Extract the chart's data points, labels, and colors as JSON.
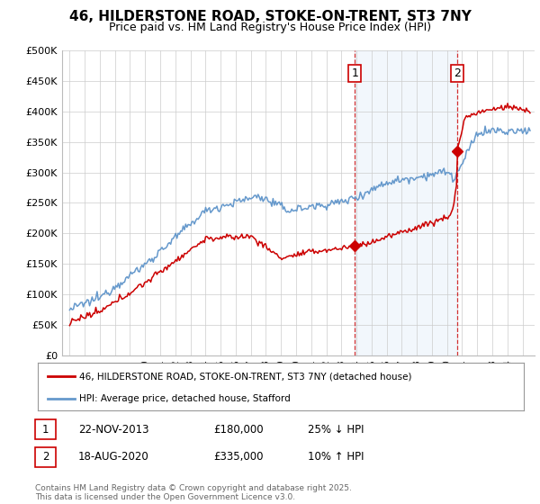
{
  "title": "46, HILDERSTONE ROAD, STOKE-ON-TRENT, ST3 7NY",
  "subtitle": "Price paid vs. HM Land Registry's House Price Index (HPI)",
  "ylabel_ticks": [
    "£0",
    "£50K",
    "£100K",
    "£150K",
    "£200K",
    "£250K",
    "£300K",
    "£350K",
    "£400K",
    "£450K",
    "£500K"
  ],
  "ytick_values": [
    0,
    50000,
    100000,
    150000,
    200000,
    250000,
    300000,
    350000,
    400000,
    450000,
    500000
  ],
  "ylim": [
    0,
    500000
  ],
  "xlim_start": 1994.5,
  "xlim_end": 2025.8,
  "hpi_color": "#6699cc",
  "price_color": "#cc0000",
  "shade_color": "#ddeeff",
  "marker1_x": 2013.9,
  "marker1_y": 180000,
  "marker2_x": 2020.65,
  "marker2_y": 335000,
  "annotation1_label": "1",
  "annotation2_label": "2",
  "legend_entry1": "46, HILDERSTONE ROAD, STOKE-ON-TRENT, ST3 7NY (detached house)",
  "legend_entry2": "HPI: Average price, detached house, Stafford",
  "table_row1": [
    "1",
    "22-NOV-2013",
    "£180,000",
    "25% ↓ HPI"
  ],
  "table_row2": [
    "2",
    "18-AUG-2020",
    "£335,000",
    "10% ↑ HPI"
  ],
  "footnote": "Contains HM Land Registry data © Crown copyright and database right 2025.\nThis data is licensed under the Open Government Licence v3.0.",
  "background_color": "#ffffff",
  "grid_color": "#cccccc",
  "vline_color": "#cc0000"
}
